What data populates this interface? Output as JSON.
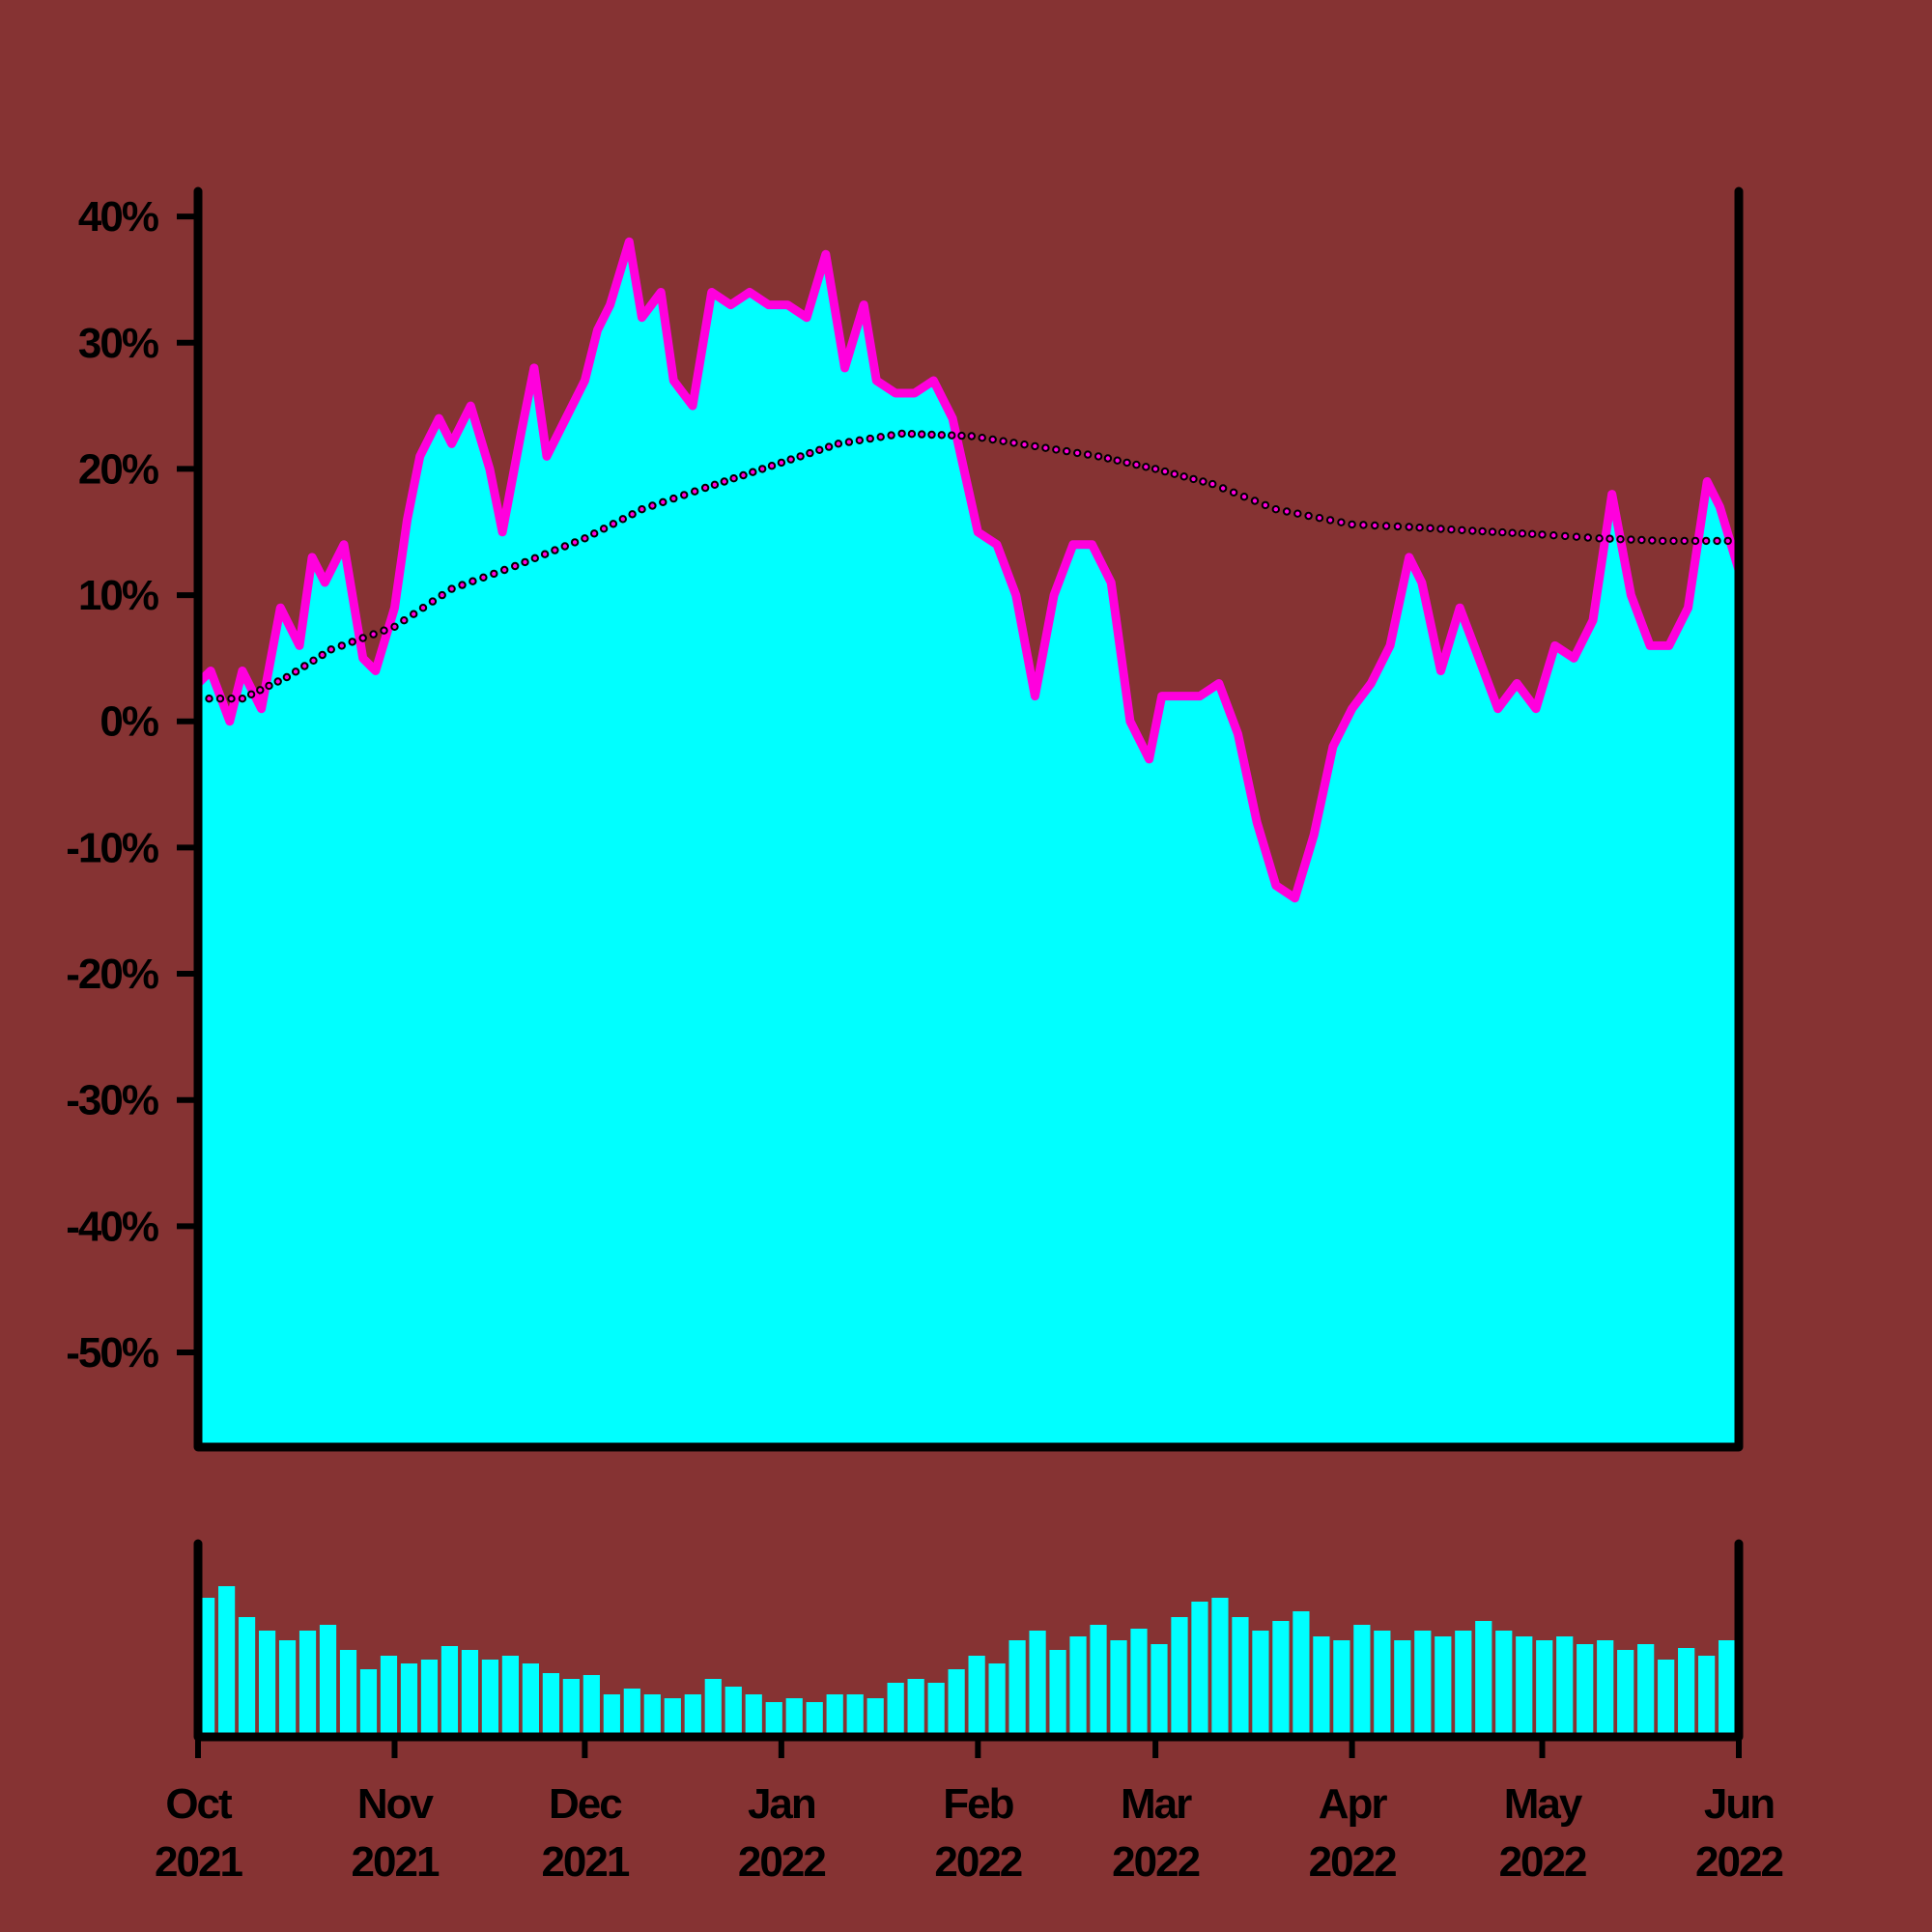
{
  "colors": {
    "background": "#863333",
    "area_fill": "#00ffff",
    "line": "#ff00dd",
    "trend_dot_fill": "#ff00dd",
    "trend_dot_stroke": "#000000",
    "axis": "#000000"
  },
  "chart_data": [
    {
      "type": "area",
      "panel": "price",
      "title": "",
      "xlabel": "",
      "ylabel": "",
      "grid": false,
      "legend": "none",
      "xlim": [
        "2021-10-01",
        "2022-06-01"
      ],
      "ylim": [
        -57.5,
        42
      ],
      "y_ticks": [
        40,
        30,
        20,
        10,
        0,
        -10,
        -20,
        -30,
        -40,
        -50
      ],
      "y_tick_labels": [
        "40%",
        "30%",
        "20%",
        "10%",
        "0%",
        "-10%",
        "-20%",
        "-30%",
        "-40%",
        "-50%"
      ],
      "series": [
        {
          "kind": "area_line",
          "x": [
            "2021-10-01",
            "2021-10-03",
            "2021-10-06",
            "2021-10-08",
            "2021-10-11",
            "2021-10-14",
            "2021-10-17",
            "2021-10-19",
            "2021-10-21",
            "2021-10-24",
            "2021-10-27",
            "2021-10-29",
            "2021-11-01",
            "2021-11-03",
            "2021-11-05",
            "2021-11-08",
            "2021-11-10",
            "2021-11-13",
            "2021-11-16",
            "2021-11-18",
            "2021-11-21",
            "2021-11-23",
            "2021-11-25",
            "2021-11-28",
            "2021-12-01",
            "2021-12-03",
            "2021-12-05",
            "2021-12-08",
            "2021-12-10",
            "2021-12-13",
            "2021-12-15",
            "2021-12-18",
            "2021-12-21",
            "2021-12-24",
            "2021-12-27",
            "2021-12-30",
            "2022-01-02",
            "2022-01-05",
            "2022-01-08",
            "2022-01-11",
            "2022-01-14",
            "2022-01-16",
            "2022-01-19",
            "2022-01-22",
            "2022-01-25",
            "2022-01-28",
            "2022-02-01",
            "2022-02-04",
            "2022-02-07",
            "2022-02-10",
            "2022-02-13",
            "2022-02-16",
            "2022-02-19",
            "2022-02-22",
            "2022-02-25",
            "2022-02-28",
            "2022-03-02",
            "2022-03-05",
            "2022-03-08",
            "2022-03-11",
            "2022-03-14",
            "2022-03-17",
            "2022-03-20",
            "2022-03-23",
            "2022-03-26",
            "2022-03-29",
            "2022-04-01",
            "2022-04-04",
            "2022-04-07",
            "2022-04-10",
            "2022-04-12",
            "2022-04-15",
            "2022-04-18",
            "2022-04-21",
            "2022-04-24",
            "2022-04-27",
            "2022-04-30",
            "2022-05-03",
            "2022-05-06",
            "2022-05-09",
            "2022-05-12",
            "2022-05-15",
            "2022-05-18",
            "2022-05-21",
            "2022-05-24",
            "2022-05-27",
            "2022-05-29",
            "2022-06-01"
          ],
          "values": [
            3,
            4,
            0,
            4,
            1,
            9,
            6,
            13,
            11,
            14,
            5,
            4,
            9,
            16,
            21,
            24,
            22,
            25,
            20,
            15,
            23,
            28,
            21,
            24,
            27,
            31,
            33,
            38,
            32,
            34,
            27,
            25,
            34,
            33,
            34,
            33,
            33,
            32,
            37,
            28,
            33,
            27,
            26,
            26,
            27,
            24,
            15,
            14,
            10,
            2,
            10,
            14,
            14,
            11,
            0,
            -3,
            2,
            2,
            2,
            3,
            -1,
            -8,
            -13,
            -14,
            -9,
            -2,
            1,
            3,
            6,
            13,
            11,
            4,
            9,
            5,
            1,
            3,
            1,
            6,
            5,
            8,
            18,
            10,
            6,
            6,
            9,
            19,
            17,
            12
          ]
        },
        {
          "kind": "dotted_trend",
          "x": [
            "2021-10-01",
            "2021-10-08",
            "2021-10-15",
            "2021-10-22",
            "2021-11-01",
            "2021-11-10",
            "2021-11-20",
            "2021-12-01",
            "2021-12-10",
            "2021-12-20",
            "2022-01-01",
            "2022-01-10",
            "2022-01-20",
            "2022-01-31",
            "2022-02-10",
            "2022-02-20",
            "2022-03-01",
            "2022-03-10",
            "2022-03-20",
            "2022-04-01",
            "2022-04-10",
            "2022-04-20",
            "2022-05-01",
            "2022-05-10",
            "2022-05-20",
            "2022-06-01"
          ],
          "values": [
            1.8,
            1.8,
            3.5,
            5.7,
            7.5,
            10.5,
            12.3,
            14.5,
            16.8,
            18.5,
            20.5,
            22,
            22.8,
            22.6,
            21.8,
            21,
            20,
            18.8,
            16.8,
            15.6,
            15.4,
            15.1,
            14.8,
            14.5,
            14.3,
            14.3
          ]
        }
      ]
    },
    {
      "type": "bar",
      "panel": "volume",
      "title": "",
      "xlabel": "",
      "ylabel": "",
      "grid": false,
      "legend": "none",
      "xlim": [
        "2021-10-01",
        "2022-06-01"
      ],
      "ylim": [
        0,
        1
      ],
      "x_ticks": [
        "2021-10-01",
        "2021-11-01",
        "2021-12-01",
        "2022-01-01",
        "2022-02-01",
        "2022-03-01",
        "2022-04-01",
        "2022-05-01",
        "2022-06-01"
      ],
      "x_tick_labels": [
        [
          "Oct",
          "2021"
        ],
        [
          "Nov",
          "2021"
        ],
        [
          "Dec",
          "2021"
        ],
        [
          "Jan",
          "2022"
        ],
        [
          "Feb",
          "2022"
        ],
        [
          "Mar",
          "2022"
        ],
        [
          "Apr",
          "2022"
        ],
        [
          "May",
          "2022"
        ],
        [
          "Jun",
          "2022"
        ]
      ],
      "values": [
        0.72,
        0.78,
        0.62,
        0.55,
        0.5,
        0.55,
        0.58,
        0.45,
        0.35,
        0.42,
        0.38,
        0.4,
        0.47,
        0.45,
        0.4,
        0.42,
        0.38,
        0.33,
        0.3,
        0.32,
        0.22,
        0.25,
        0.22,
        0.2,
        0.22,
        0.3,
        0.26,
        0.22,
        0.18,
        0.2,
        0.18,
        0.22,
        0.22,
        0.2,
        0.28,
        0.3,
        0.28,
        0.35,
        0.42,
        0.38,
        0.5,
        0.55,
        0.45,
        0.52,
        0.58,
        0.5,
        0.56,
        0.48,
        0.62,
        0.7,
        0.72,
        0.62,
        0.55,
        0.6,
        0.65,
        0.52,
        0.5,
        0.58,
        0.55,
        0.5,
        0.55,
        0.52,
        0.55,
        0.6,
        0.55,
        0.52,
        0.5,
        0.52,
        0.48,
        0.5,
        0.45,
        0.48,
        0.4,
        0.46,
        0.42,
        0.5
      ]
    }
  ]
}
